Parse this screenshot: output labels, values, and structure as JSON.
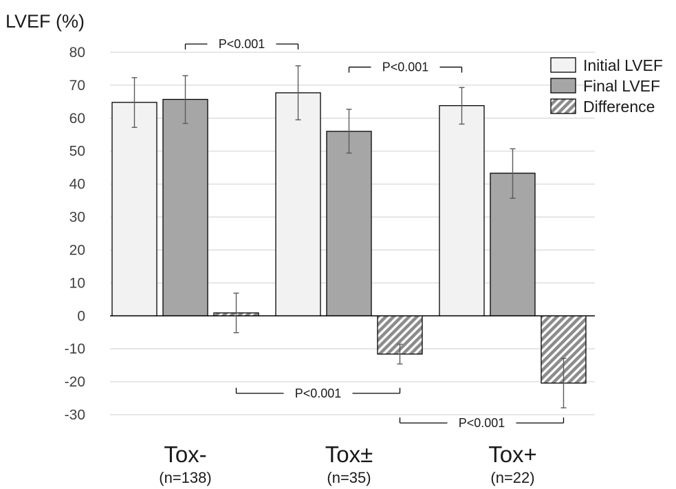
{
  "chart_data": {
    "type": "bar",
    "ylabel": "LVEF (%)",
    "ylim": [
      -30,
      80
    ],
    "yticks": [
      80,
      70,
      60,
      50,
      40,
      30,
      20,
      10,
      0,
      -10,
      -20,
      -30
    ],
    "grid": true,
    "legend_position": "top-right",
    "categories": [
      {
        "label": "Tox-",
        "sublabel": "(n=138)"
      },
      {
        "label": "Tox±",
        "sublabel": "(n=35)"
      },
      {
        "label": "Tox+",
        "sublabel": "(n=22)"
      }
    ],
    "series": [
      {
        "name": "Initial LVEF",
        "color": "#f2f2f2",
        "pattern": "solid",
        "values": [
          64.8,
          67.7,
          63.8
        ],
        "err_low": [
          57.2,
          59.5,
          58.2
        ],
        "err_high": [
          72.3,
          75.9,
          69.3
        ]
      },
      {
        "name": "Final LVEF",
        "color": "#a6a6a6",
        "pattern": "solid",
        "values": [
          65.7,
          56.0,
          43.3
        ],
        "err_low": [
          58.4,
          49.4,
          35.7
        ],
        "err_high": [
          72.9,
          62.7,
          50.7
        ]
      },
      {
        "name": "Difference",
        "color": "#8c8c8c",
        "pattern": "hatch",
        "values": [
          0.9,
          -11.6,
          -20.4
        ],
        "err_low": [
          -5.1,
          -14.6,
          -27.9
        ],
        "err_high": [
          6.9,
          -8.6,
          -12.9
        ]
      }
    ],
    "annotations": [
      {
        "text": "P<0.001",
        "from": {
          "category": 0,
          "series": 1
        },
        "to": {
          "category": 1,
          "series": 0
        },
        "y": 82.5,
        "tick": "down"
      },
      {
        "text": "P<0.001",
        "from": {
          "category": 1,
          "series": 1
        },
        "to": {
          "category": 2,
          "series": 0
        },
        "y": 75.5,
        "tick": "down"
      },
      {
        "text": "P<0.001",
        "from": {
          "category": 0,
          "series": 2
        },
        "to": {
          "category": 1,
          "series": 2
        },
        "y": -23.5,
        "tick": "up"
      },
      {
        "text": "P<0.001",
        "from": {
          "category": 1,
          "series": 2
        },
        "to": {
          "category": 2,
          "series": 2
        },
        "y": -32.5,
        "tick": "up"
      }
    ]
  }
}
